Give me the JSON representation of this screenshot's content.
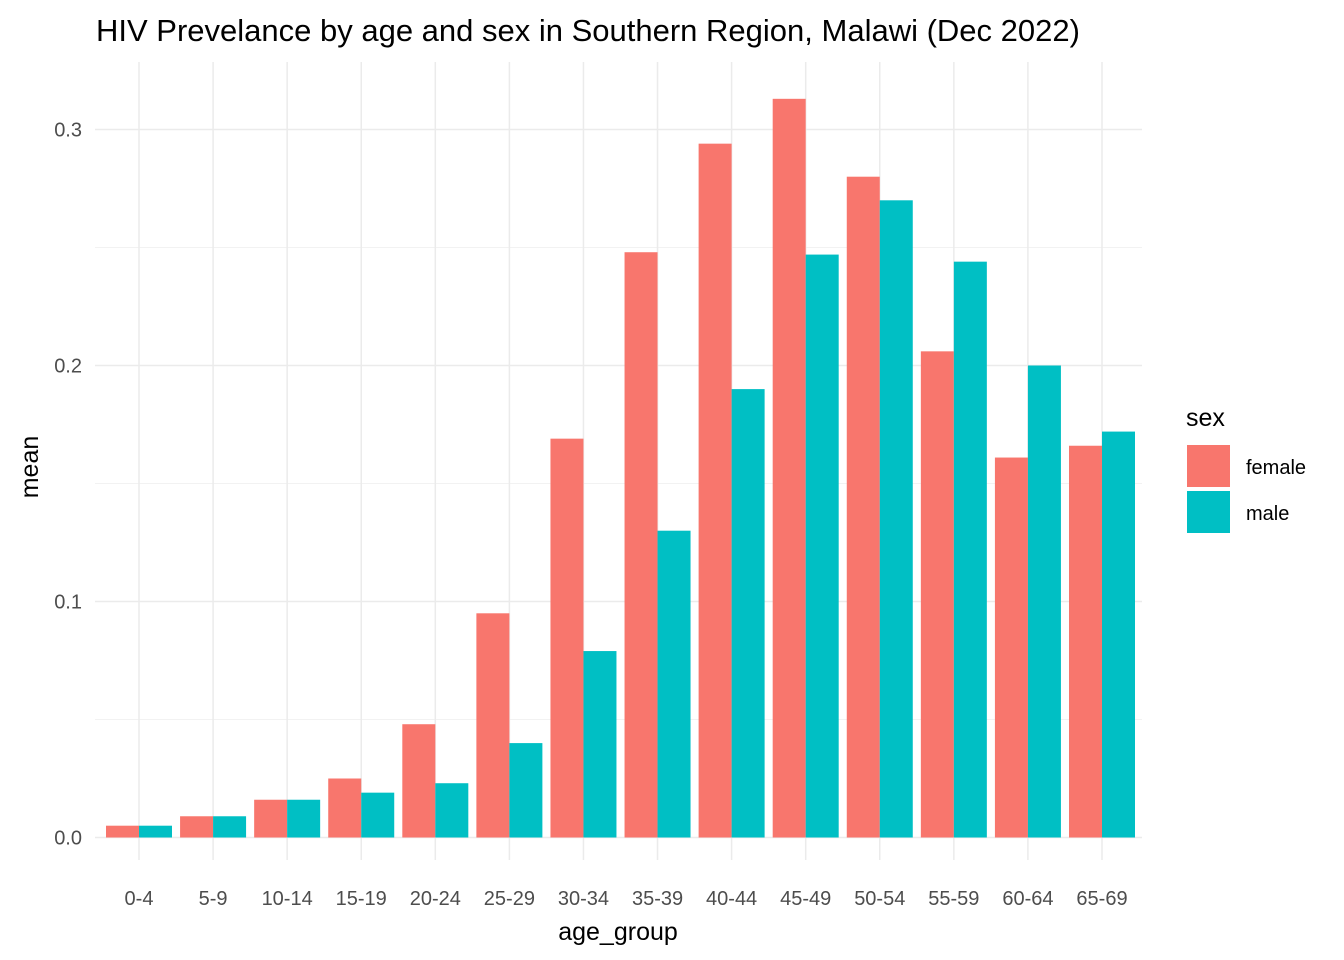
{
  "chart_data": {
    "type": "bar",
    "title": "HIV Prevelance by age and sex in Southern Region, Malawi (Dec 2022)",
    "xlabel": "age_group",
    "ylabel": "mean",
    "categories": [
      "0-4",
      "5-9",
      "10-14",
      "15-19",
      "20-24",
      "25-29",
      "30-34",
      "35-39",
      "40-44",
      "45-49",
      "50-54",
      "55-59",
      "60-64",
      "65-69"
    ],
    "series": [
      {
        "name": "female",
        "color": "#F8766D",
        "values": [
          0.005,
          0.009,
          0.016,
          0.025,
          0.048,
          0.095,
          0.169,
          0.248,
          0.294,
          0.313,
          0.28,
          0.206,
          0.161,
          0.166
        ]
      },
      {
        "name": "male",
        "color": "#00BFC4",
        "values": [
          0.005,
          0.009,
          0.016,
          0.019,
          0.023,
          0.04,
          0.079,
          0.13,
          0.19,
          0.247,
          0.27,
          0.244,
          0.2,
          0.172
        ]
      }
    ],
    "ylim": [
      0,
      0.32
    ],
    "yticks": [
      0.0,
      0.1,
      0.2,
      0.3
    ],
    "ytick_labels": [
      "0.0",
      "0.1",
      "0.2",
      "0.3"
    ],
    "grid": true,
    "legend": {
      "title": "sex",
      "position": "right"
    }
  }
}
